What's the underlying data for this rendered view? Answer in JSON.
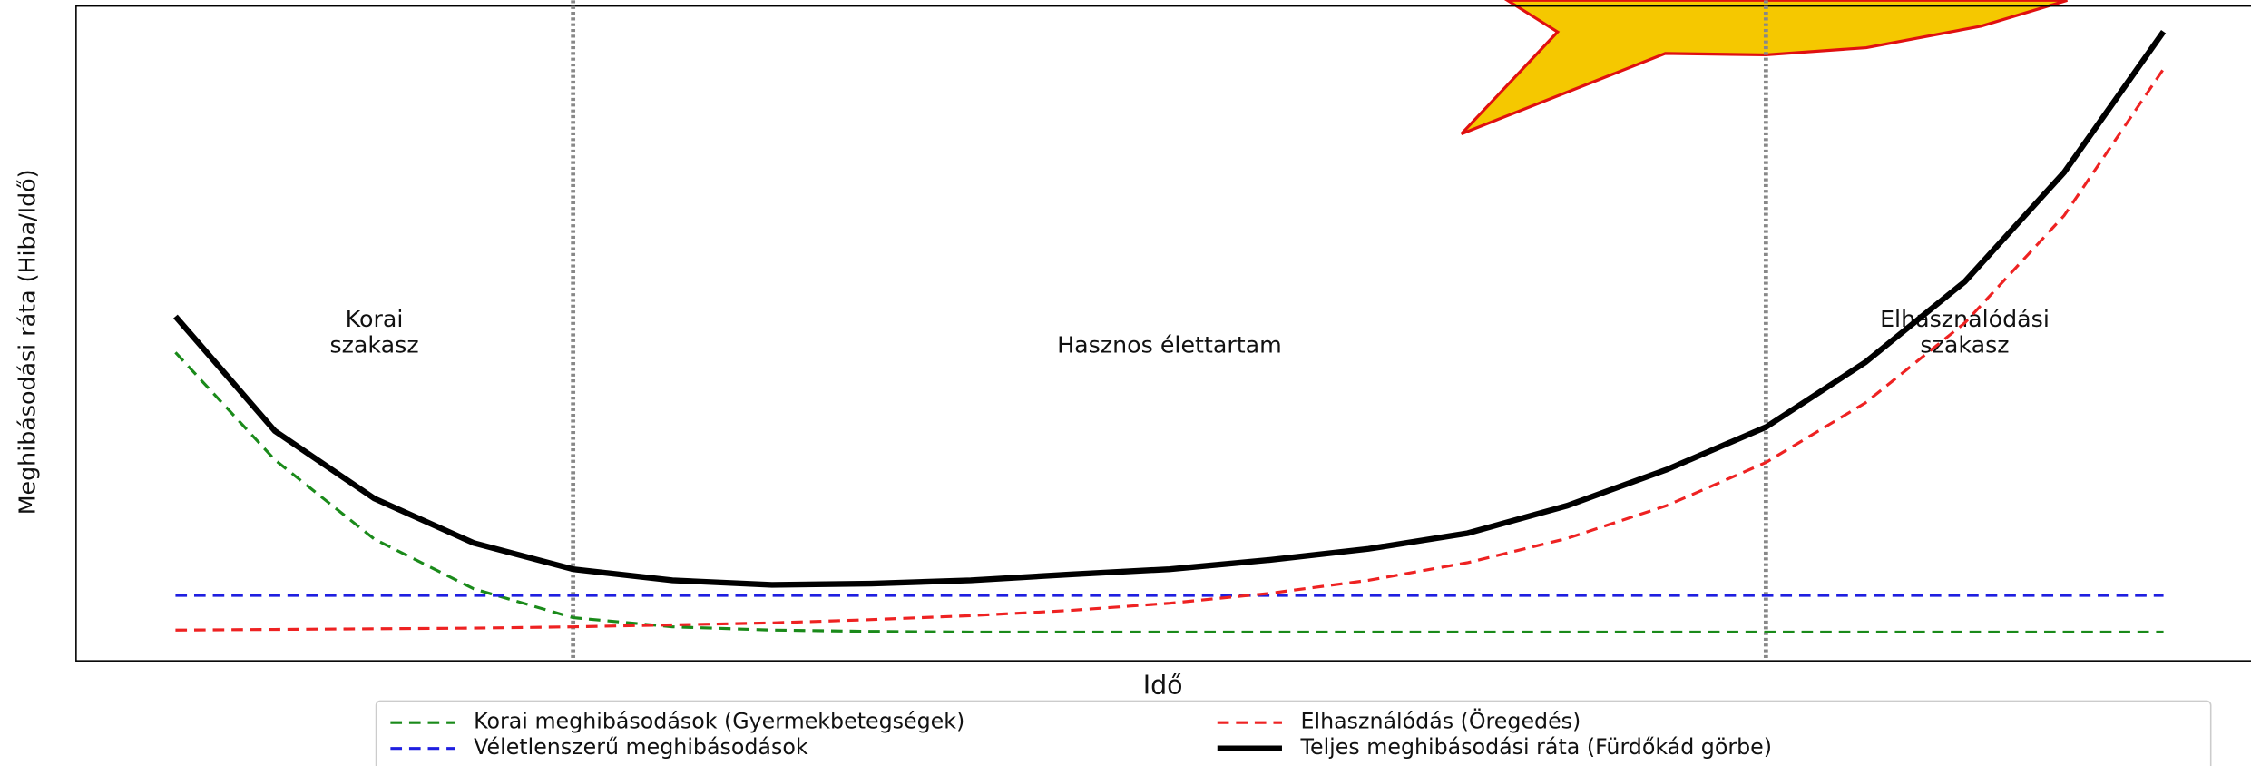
{
  "chart_data": {
    "type": "line",
    "xlabel": "Idő",
    "ylabel": "Meghibásodási ráta (Hiba/Idő)",
    "x": [
      0,
      0.5,
      1,
      1.5,
      2,
      2.5,
      3,
      3.5,
      4,
      4.5,
      5,
      5.5,
      6,
      6.5,
      7,
      7.5,
      8,
      8.5,
      9,
      9.5,
      10
    ],
    "series": [
      {
        "name": "Korai meghibásodások (Gyermekbetegségek)",
        "color": "#1a8a1a",
        "dashed": true,
        "values": [
          4.71,
          3.07,
          1.86,
          1.1,
          0.66,
          0.52,
          0.47,
          0.45,
          0.44,
          0.44,
          0.44,
          0.44,
          0.44,
          0.44,
          0.44,
          0.44,
          0.44,
          0.44,
          0.44,
          0.44,
          0.44
        ]
      },
      {
        "name": "Véletlenszerű meghibásodások",
        "color": "#1f1fe0",
        "dashed": true,
        "values": [
          1.0,
          1.0,
          1.0,
          1.0,
          1.0,
          1.0,
          1.0,
          1.0,
          1.0,
          1.0,
          1.0,
          1.0,
          1.0,
          1.0,
          1.0,
          1.0,
          1.0,
          1.0,
          1.0,
          1.0,
          1.0
        ]
      },
      {
        "name": "Elhasználódás (Öregedés)",
        "color": "#ee2222",
        "dashed": true,
        "values": [
          0.47,
          0.48,
          0.49,
          0.5,
          0.52,
          0.55,
          0.58,
          0.63,
          0.69,
          0.77,
          0.88,
          1.03,
          1.23,
          1.5,
          1.87,
          2.37,
          3.03,
          3.94,
          5.16,
          6.8,
          9.04
        ]
      },
      {
        "name": "Teljes meghibásodási ráta (Fürdőkád görbe)",
        "color": "#000000",
        "dashed": false,
        "values": [
          5.26,
          3.51,
          2.48,
          1.8,
          1.4,
          1.23,
          1.16,
          1.18,
          1.23,
          1.32,
          1.4,
          1.54,
          1.71,
          1.95,
          2.37,
          2.92,
          3.57,
          4.56,
          5.79,
          7.46,
          9.61
        ]
      }
    ],
    "phase_boundaries": [
      2,
      8
    ],
    "annotations": [
      [
        "Korai",
        "szakasz"
      ],
      [
        "Hasznos élettartam"
      ],
      [
        "Elhasználódási",
        "szakasz"
      ]
    ],
    "xlim": [
      -0.5,
      10.44
    ],
    "ylim": [
      0,
      10
    ],
    "grid": false
  }
}
